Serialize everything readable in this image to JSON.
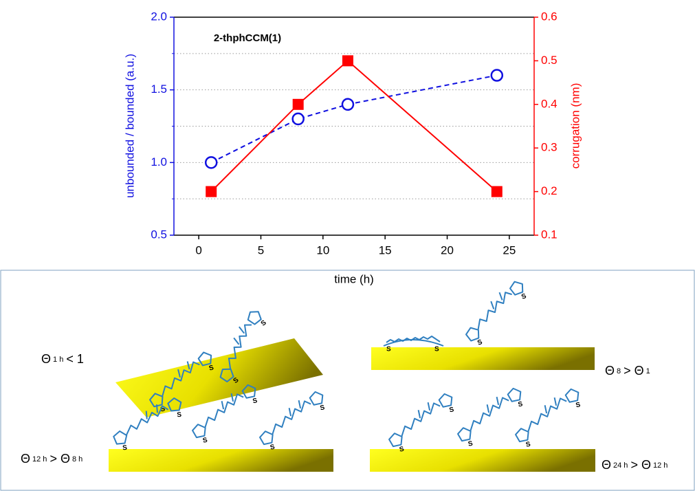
{
  "chart_data": {
    "type": "line",
    "annotation": "2-thphCCM(1)",
    "xlabel": "time (h)",
    "ylabel": "unbounded / bounded (a.u.)",
    "y2label": "corrugation (nm)",
    "x": [
      1,
      8,
      12,
      24
    ],
    "xlim": [
      -2,
      27
    ],
    "xticks": [
      0,
      5,
      10,
      15,
      20,
      25
    ],
    "ylim": [
      0.5,
      2.0
    ],
    "yticks": [
      {
        "value": 0.5,
        "label": "0.5"
      },
      {
        "value": 1.0,
        "label": "1.0"
      },
      {
        "value": 1.5,
        "label": "1.5"
      },
      {
        "value": 2.0,
        "label": "2.0"
      }
    ],
    "yminorticks": [
      0.75,
      1.25,
      1.75
    ],
    "y2lim": [
      0.1,
      0.6
    ],
    "y2ticks": [
      0.1,
      0.2,
      0.3,
      0.4,
      0.5,
      0.6
    ],
    "grid": true,
    "ycolor": "#1010e0",
    "y2color": "#ff0000",
    "series": [
      {
        "color": "#1010e0",
        "linestyle": "dashed",
        "marker": "circle",
        "values": [
          1.0,
          1.3,
          1.4,
          1.6
        ]
      },
      {
        "color": "#ff0000",
        "linestyle": "solid",
        "marker": "square",
        "axis": "y2",
        "values": [
          0.2,
          0.4,
          0.5,
          0.2
        ]
      }
    ]
  },
  "diagram": {
    "atom": "S",
    "panels": [
      {
        "label": [
          "Θ",
          "1 h",
          "< 1"
        ]
      },
      {
        "label": [
          "Θ",
          "8",
          "> Θ",
          "1"
        ]
      },
      {
        "label": [
          "Θ",
          "12 h",
          "> Θ",
          "8 h"
        ]
      },
      {
        "label": [
          "Θ",
          "24 h",
          "> Θ",
          "12 h"
        ]
      }
    ]
  }
}
